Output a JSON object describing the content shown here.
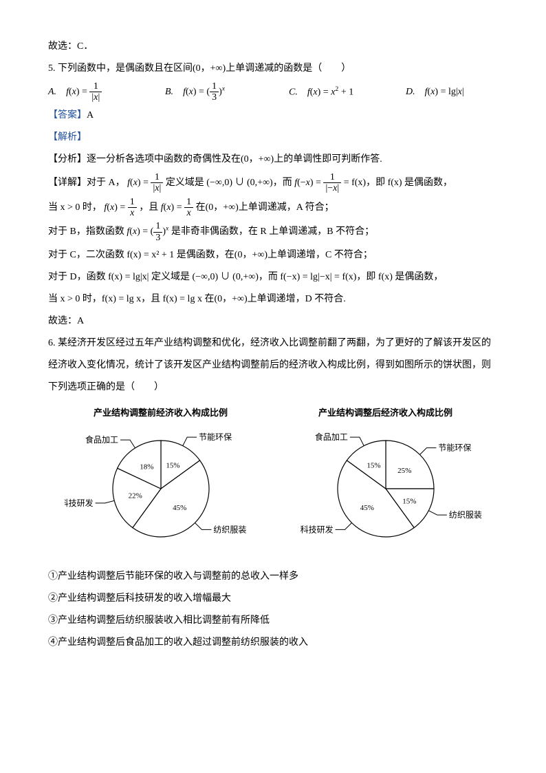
{
  "prev_answer": "故选：C．",
  "q5": {
    "stem": "5. 下列函数中，是偶函数且在区间(0，+∞)上单调递减的函数是（　　）",
    "optA_prefix": "A.　",
    "optB_prefix": "B.　",
    "optC_prefix": "C.　",
    "optD_prefix": "D.　",
    "answer_label": "【答案】",
    "answer": "A",
    "jiexi": "【解析】",
    "fenxi_label": "【分析】",
    "fenxi": "逐一分析各选项中函数的奇偶性及在(0，+∞)上的单调性即可判断作答.",
    "xj_label": "【详解】",
    "detA1_a": "对于 A，",
    "detA1_b": "定义域是 (−∞,0) ∪ (0,+∞)，而",
    "detA1_c": " = f(x)，即 f(x) 是偶函数，",
    "detA2_a": "当 x > 0 时，",
    "detA2_b": "，且",
    "detA2_c": "在(0，+∞)上单调递减，A 符合；",
    "detB_a": "对于 B，指数函数",
    "detB_b": "是非奇非偶函数，在 R 上单调递减，B 不符合；",
    "detC": "对于 C，二次函数 f(x) = x² + 1 是偶函数，在(0，+∞)上单调递增，C 不符合；",
    "detD": "对于 D，函数 f(x) = lg|x| 定义域是 (−∞,0) ∪ (0,+∞)，而 f(−x) = lg|−x| = f(x)，即 f(x) 是偶函数，",
    "detD2": "当 x > 0 时，f(x) = lg x，且 f(x) = lg x 在(0，+∞)上单调递增，D 不符合.",
    "final": "故选：A"
  },
  "q6": {
    "stem1": "6. 某经济开发区经过五年产业结构调整和优化，经济收入比调整前翻了两翻，为了更好的了解该开发区的",
    "stem2": "经济收入变化情况，统计了该开发区产业结构调整前后的经济收入构成比例，得到如图所示的饼状图，则",
    "stem3": "下列选项正确的是（　　）",
    "chart1": {
      "title": "产业结构调整前经济收入构成比例",
      "slices": [
        {
          "label": "节能环保",
          "value": 15,
          "pct": "15%"
        },
        {
          "label": "纺织服装",
          "value": 45,
          "pct": "45%"
        },
        {
          "label": "科技研发",
          "value": 22,
          "pct": "22%"
        },
        {
          "label": "食品加工",
          "value": 18,
          "pct": "18%"
        }
      ],
      "fill": "#ffffff",
      "stroke": "#000000"
    },
    "chart2": {
      "title": "产业结构调整后经济收入构成比例",
      "slices": [
        {
          "label": "节能环保",
          "value": 25,
          "pct": "25%"
        },
        {
          "label": "纺织服装",
          "value": 15,
          "pct": "15%"
        },
        {
          "label": "科技研发",
          "value": 45,
          "pct": "45%"
        },
        {
          "label": "食品加工",
          "value": 15,
          "pct": "15%"
        }
      ],
      "fill": "#ffffff",
      "stroke": "#000000"
    },
    "s1": "①产业结构调整后节能环保的收入与调整前的总收入一样多",
    "s2": "②产业结构调整后科技研发的收入增幅最大",
    "s3": "③产业结构调整后纺织服装收入相比调整前有所降低",
    "s4": "④产业结构调整后食品加工的收入超过调整前纺织服装的收入"
  }
}
